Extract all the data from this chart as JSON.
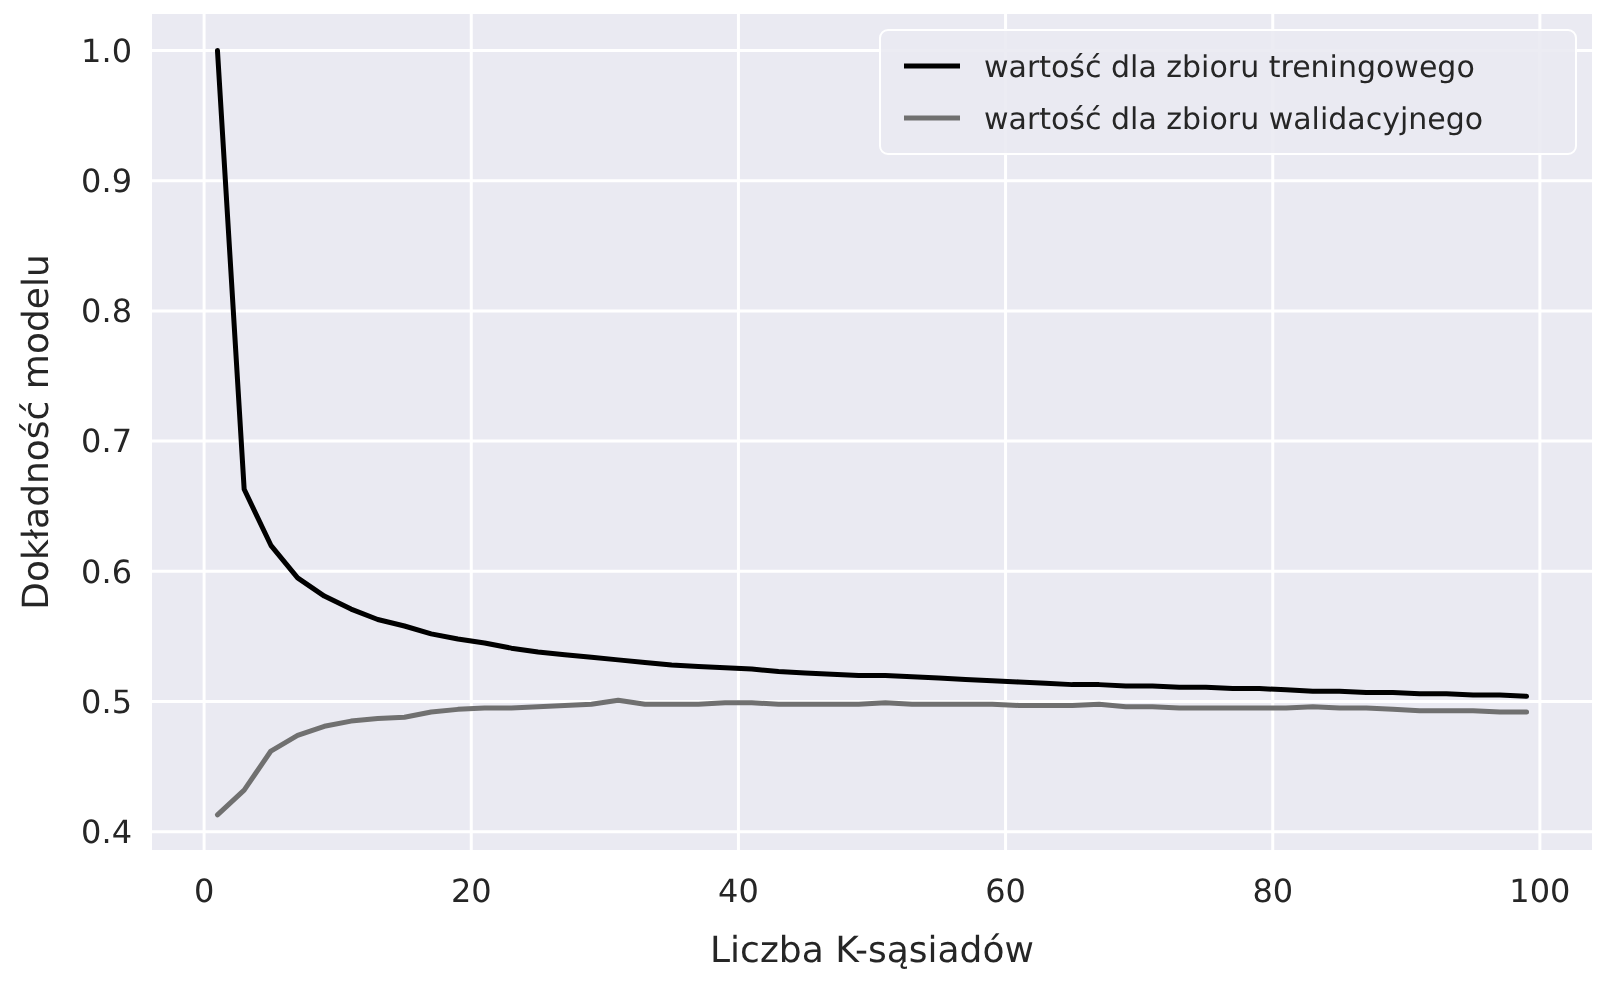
{
  "chart_data": {
    "type": "line",
    "xlabel": "Liczba K-sąsiadów",
    "ylabel": "Dokładność modelu",
    "x": [
      1,
      3,
      5,
      7,
      9,
      11,
      13,
      15,
      17,
      19,
      21,
      23,
      25,
      27,
      29,
      31,
      33,
      35,
      37,
      39,
      41,
      43,
      45,
      47,
      49,
      51,
      53,
      55,
      57,
      59,
      61,
      63,
      65,
      67,
      69,
      71,
      73,
      75,
      77,
      79,
      81,
      83,
      85,
      87,
      89,
      91,
      93,
      95,
      97,
      99
    ],
    "series": [
      {
        "name": "wartość dla zbioru treningowego",
        "color": "#000000",
        "values": [
          1.0,
          0.663,
          0.62,
          0.595,
          0.581,
          0.571,
          0.563,
          0.558,
          0.552,
          0.548,
          0.545,
          0.541,
          0.538,
          0.536,
          0.534,
          0.532,
          0.53,
          0.528,
          0.527,
          0.526,
          0.525,
          0.523,
          0.522,
          0.521,
          0.52,
          0.52,
          0.519,
          0.518,
          0.517,
          0.516,
          0.515,
          0.514,
          0.513,
          0.513,
          0.512,
          0.512,
          0.511,
          0.511,
          0.51,
          0.51,
          0.509,
          0.508,
          0.508,
          0.507,
          0.507,
          0.506,
          0.506,
          0.505,
          0.505,
          0.504
        ]
      },
      {
        "name": "wartość dla zbioru walidacyjnego",
        "color": "#707070",
        "values": [
          0.413,
          0.432,
          0.462,
          0.474,
          0.481,
          0.485,
          0.487,
          0.488,
          0.492,
          0.494,
          0.495,
          0.495,
          0.496,
          0.497,
          0.498,
          0.501,
          0.498,
          0.498,
          0.498,
          0.499,
          0.499,
          0.498,
          0.498,
          0.498,
          0.498,
          0.499,
          0.498,
          0.498,
          0.498,
          0.498,
          0.497,
          0.497,
          0.497,
          0.498,
          0.496,
          0.496,
          0.495,
          0.495,
          0.495,
          0.495,
          0.495,
          0.496,
          0.495,
          0.495,
          0.494,
          0.493,
          0.493,
          0.493,
          0.492,
          0.492
        ]
      }
    ],
    "xlim": [
      -3.9,
      103.9
    ],
    "xticks": [
      0,
      20,
      40,
      60,
      80,
      100
    ],
    "ylim": [
      0.386,
      1.028
    ],
    "yticks": [
      {
        "value": 0.4,
        "label": "0.4"
      },
      {
        "value": 0.5,
        "label": "0.5"
      },
      {
        "value": 0.6,
        "label": "0.6"
      },
      {
        "value": 0.7,
        "label": "0.7"
      },
      {
        "value": 0.8,
        "label": "0.8"
      },
      {
        "value": 0.9,
        "label": "0.9"
      },
      {
        "value": 1.0,
        "label": "1.0"
      }
    ],
    "grid": true,
    "legend": "top right"
  }
}
